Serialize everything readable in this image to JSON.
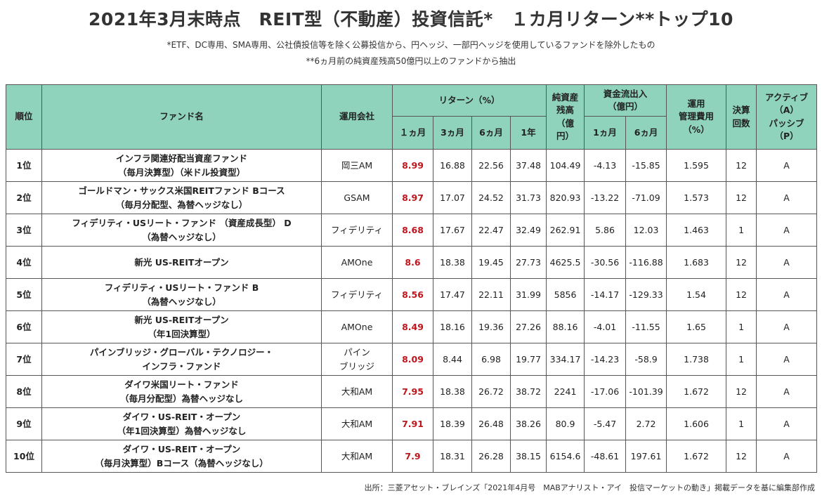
{
  "title": "2021年3月末時点　REIT型（不動産）投資信託*　１カ月リターン**トップ10",
  "notes": [
    "*ETF、DC専用、SMA専用、公社債投信等を除く公募投信から、円ヘッジ、一部円ヘッジを使用しているファンドを除外したもの",
    "**6ヵ月前の純資産残高50億円以上のファンドから抽出"
  ],
  "headers": {
    "rank": "順位",
    "fund": "ファンド名",
    "company": "運用会社",
    "return_group": "リターン（%）",
    "r1m": "１ヵ月",
    "r3m": "3ヵ月",
    "r6m": "6ヵ月",
    "r1y": "1年",
    "nav_l1": "純資産",
    "nav_l2": "残高",
    "nav_l3": "（億",
    "nav_l4": "円）",
    "flow_l1": "資金流出入",
    "flow_l2": "（億円）",
    "f1m": "1ヵ月",
    "f6m": "6ヵ月",
    "fee_l1": "運用",
    "fee_l2": "管理費用",
    "fee_l3": "（%）",
    "settle_l1": "決算",
    "settle_l2": "回数",
    "ap_l1": "アクティブ",
    "ap_l2": "（A）",
    "ap_l3": "パッシブ",
    "ap_l4": "（P）"
  },
  "rows": [
    {
      "rank": "1位",
      "fund_l1": "インフラ関連好配当資産ファンド",
      "fund_l2": "（毎月決算型）（米ドル投資型）",
      "company_l1": "岡三AM",
      "company_l2": "",
      "r1m": "8.99",
      "r3m": "16.88",
      "r6m": "22.56",
      "r1y": "37.48",
      "nav": "104.49",
      "f1m": "-4.13",
      "f6m": "-15.85",
      "fee": "1.595",
      "settle": "12",
      "ap": "A"
    },
    {
      "rank": "2位",
      "fund_l1": "ゴールドマン・サックス米国REITファンド Bコース",
      "fund_l2": "（毎月分配型、為替ヘッジなし）",
      "company_l1": "GSAM",
      "company_l2": "",
      "r1m": "8.97",
      "r3m": "17.07",
      "r6m": "24.52",
      "r1y": "31.73",
      "nav": "820.93",
      "f1m": "-13.22",
      "f6m": "-71.09",
      "fee": "1.573",
      "settle": "12",
      "ap": "A"
    },
    {
      "rank": "3位",
      "fund_l1": "フィデリティ・USリート・ファンド （資産成長型） D",
      "fund_l2": "（為替ヘッジなし）",
      "company_l1": "フィデリティ",
      "company_l2": "",
      "r1m": "8.68",
      "r3m": "17.67",
      "r6m": "22.47",
      "r1y": "32.49",
      "nav": "262.91",
      "f1m": "5.86",
      "f6m": "12.03",
      "fee": "1.463",
      "settle": "1",
      "ap": "A"
    },
    {
      "rank": "4位",
      "fund_l1": "新光 US-REITオープン",
      "fund_l2": "",
      "company_l1": "AMOne",
      "company_l2": "",
      "r1m": "8.6",
      "r3m": "18.38",
      "r6m": "19.45",
      "r1y": "27.73",
      "nav": "4625.5",
      "f1m": "-30.56",
      "f6m": "-116.88",
      "fee": "1.683",
      "settle": "12",
      "ap": "A"
    },
    {
      "rank": "5位",
      "fund_l1": "フィデリティ・USリート・ファンド B",
      "fund_l2": "（為替ヘッジなし）",
      "company_l1": "フィデリティ",
      "company_l2": "",
      "r1m": "8.56",
      "r3m": "17.47",
      "r6m": "22.11",
      "r1y": "31.99",
      "nav": "5856",
      "f1m": "-14.17",
      "f6m": "-129.33",
      "fee": "1.54",
      "settle": "12",
      "ap": "A"
    },
    {
      "rank": "6位",
      "fund_l1": "新光 US-REITオープン",
      "fund_l2": "（年1回決算型）",
      "company_l1": "AMOne",
      "company_l2": "",
      "r1m": "8.49",
      "r3m": "18.16",
      "r6m": "19.36",
      "r1y": "27.26",
      "nav": "88.16",
      "f1m": "-4.01",
      "f6m": "-11.55",
      "fee": "1.65",
      "settle": "1",
      "ap": "A"
    },
    {
      "rank": "7位",
      "fund_l1": "パインブリッジ・グローバル・テクノロジー・",
      "fund_l2": "インフラ・ファンド",
      "company_l1": "パイン",
      "company_l2": "ブリッジ",
      "r1m": "8.09",
      "r3m": "8.44",
      "r6m": "6.98",
      "r1y": "19.77",
      "nav": "334.17",
      "f1m": "-14.23",
      "f6m": "-58.9",
      "fee": "1.738",
      "settle": "1",
      "ap": "A"
    },
    {
      "rank": "8位",
      "fund_l1": "ダイワ米国リート・ファンド",
      "fund_l2": "（毎月分配型）為替ヘッジなし",
      "company_l1": "大和AM",
      "company_l2": "",
      "r1m": "7.95",
      "r3m": "18.38",
      "r6m": "26.72",
      "r1y": "38.72",
      "nav": "2241",
      "f1m": "-17.06",
      "f6m": "-101.39",
      "fee": "1.672",
      "settle": "12",
      "ap": "A"
    },
    {
      "rank": "9位",
      "fund_l1": "ダイワ・US-REIT・オープン",
      "fund_l2": "（年1回決算型）為替ヘッジなし",
      "company_l1": "大和AM",
      "company_l2": "",
      "r1m": "7.91",
      "r3m": "18.39",
      "r6m": "26.48",
      "r1y": "38.26",
      "nav": "80.9",
      "f1m": "-5.47",
      "f6m": "2.72",
      "fee": "1.606",
      "settle": "1",
      "ap": "A"
    },
    {
      "rank": "10位",
      "fund_l1": "ダイワ・US-REIT・オープン",
      "fund_l2": "（毎月決算型）Bコース（為替ヘッジなし）",
      "company_l1": "大和AM",
      "company_l2": "",
      "r1m": "7.9",
      "r3m": "18.31",
      "r6m": "26.28",
      "r1y": "38.15",
      "nav": "6154.6",
      "f1m": "-48.61",
      "f6m": "197.61",
      "fee": "1.672",
      "settle": "12",
      "ap": "A"
    }
  ],
  "source": "出所：三菱アセット・ブレインズ「2021年4月号　MABアナリスト・アイ　投信マーケットの動き」掲載データを基に編集部作成",
  "colors": {
    "header_bg": "#8fd3bd",
    "highlight": "#c0141c",
    "border": "#555555"
  }
}
